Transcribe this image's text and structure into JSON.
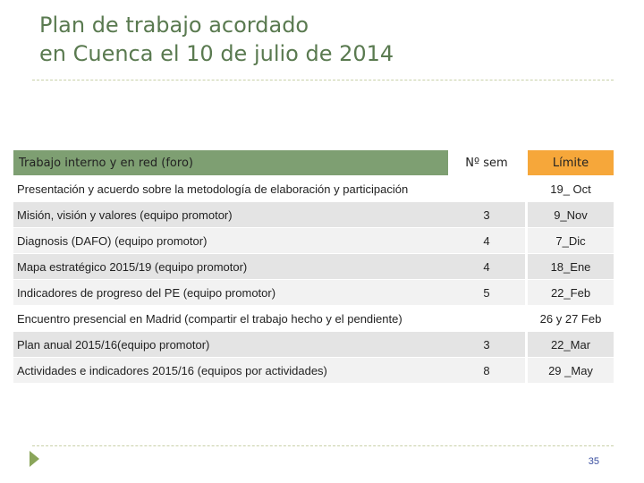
{
  "slide": {
    "title_line1": "Plan de trabajo acordado",
    "title_line2": "en Cuenca el 10 de julio de 2014",
    "page_number": "35"
  },
  "table": {
    "headers": {
      "task": "Trabajo interno y en red (foro)",
      "week": "Nº sem",
      "deadline": "Límite"
    },
    "rows": [
      {
        "task": "Presentación y acuerdo sobre la metodología de elaboración y participación",
        "week": "",
        "deadline": "19_ Oct"
      },
      {
        "task": "Misión, visión y valores  (equipo promotor)",
        "week": "3",
        "deadline": "9_Nov"
      },
      {
        "task": "Diagnosis (DAFO)   (equipo promotor)",
        "week": "4",
        "deadline": "7_Dic"
      },
      {
        "task": "Mapa estratégico  2015/19 (equipo promotor)",
        "week": "4",
        "deadline": "18_Ene"
      },
      {
        "task": "Indicadores de progreso del PE (equipo promotor)",
        "week": "5",
        "deadline": "22_Feb"
      },
      {
        "task": "Encuentro presencial en Madrid (compartir el trabajo hecho y el pendiente)",
        "week": "",
        "deadline": "26 y 27 Feb"
      },
      {
        "task": "Plan anual  2015/16(equipo promotor)",
        "week": "3",
        "deadline": "22_Mar"
      },
      {
        "task": "Actividades e indicadores 2015/16  (equipos por actividades)",
        "week": "8",
        "deadline": "29 _May"
      }
    ]
  },
  "colors": {
    "title": "#5a7a50",
    "header_task_bg": "#7e9f72",
    "header_deadline_bg": "#f6a73a",
    "row_dark": "#e4e4e4",
    "row_light": "#f2f2f2",
    "footer_arrow": "#8aa55a"
  },
  "icons": {
    "footer": "triangle-right-icon"
  }
}
